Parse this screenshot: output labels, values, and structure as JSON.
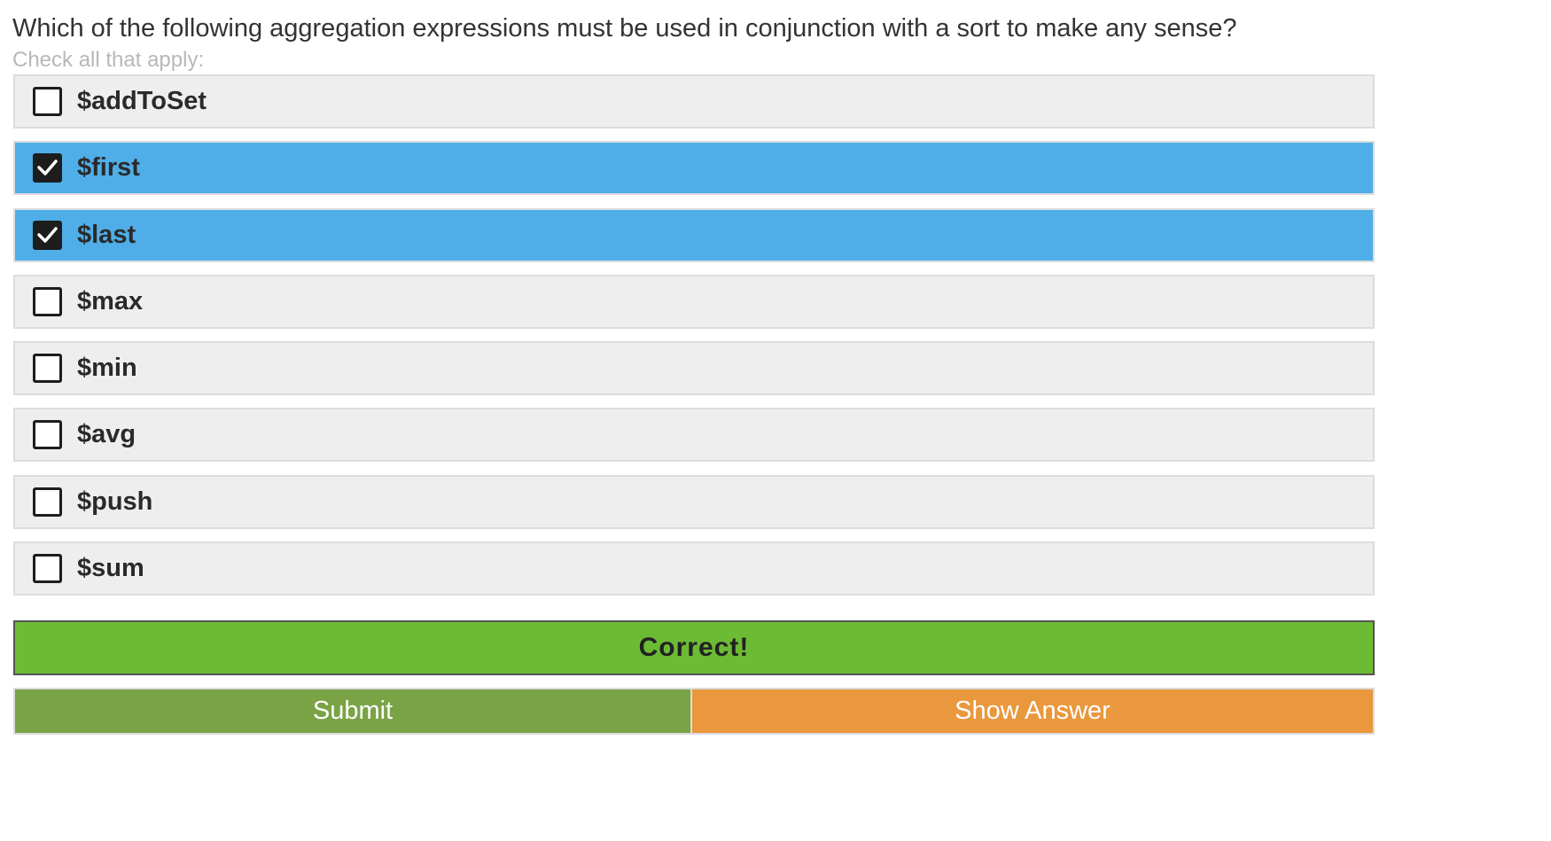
{
  "question": {
    "text": "Which of the following aggregation expressions must be used in conjunction with a sort to make any sense?",
    "instruction": "Check all that apply:"
  },
  "options": [
    {
      "label": "$addToSet",
      "checked": false
    },
    {
      "label": "$first",
      "checked": true
    },
    {
      "label": "$last",
      "checked": true
    },
    {
      "label": "$max",
      "checked": false
    },
    {
      "label": "$min",
      "checked": false
    },
    {
      "label": "$avg",
      "checked": false
    },
    {
      "label": "$push",
      "checked": false
    },
    {
      "label": "$sum",
      "checked": false
    }
  ],
  "result": {
    "text": "Correct!",
    "color": "#6cbb35"
  },
  "buttons": {
    "submit_label": "Submit",
    "show_answer_label": "Show Answer"
  },
  "colors": {
    "selected_option": "#4faee8",
    "option_background": "#eeeeee",
    "submit": "#7aa346",
    "show_answer": "#ea983e"
  },
  "icons": {
    "unchecked": "checkbox-unchecked-icon",
    "checked": "checkmark-icon"
  }
}
